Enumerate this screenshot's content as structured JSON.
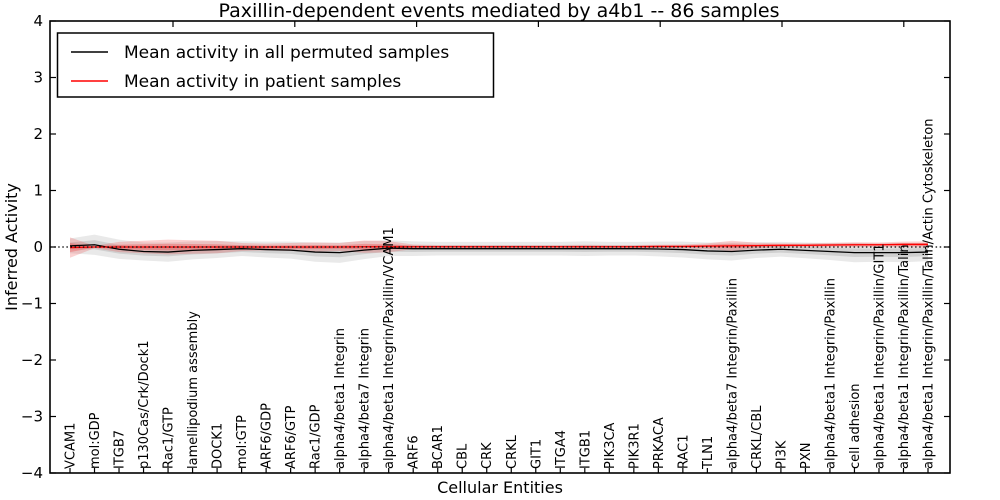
{
  "chart_data": {
    "type": "line",
    "title": "Paxillin-dependent events mediated by a4b1 -- 86 samples",
    "xlabel": "Cellular Entities",
    "ylabel": "Inferred Activity",
    "ylim": [
      -4,
      4
    ],
    "yticks": [
      4,
      3,
      2,
      1,
      0,
      -1,
      -2,
      -3,
      -4
    ],
    "grid": false,
    "legend_position": "upper-left",
    "zero_reference_line": true,
    "categories": [
      "VCAM1",
      "mol:GDP",
      "ITGB7",
      "p130Cas/Crk/Dock1",
      "Rac1/GTP",
      "lamellipodium assembly",
      "DOCK1",
      "mol:GTP",
      "ARF6/GDP",
      "ARF6/GTP",
      "Rac1/GDP",
      "alpha4/beta1 Integrin",
      "alpha4/beta7 Integrin",
      "alpha4/beta1 Integrin/Paxillin/VCAM1",
      "ARF6",
      "BCAR1",
      "CBL",
      "CRK",
      "CRKL",
      "GIT1",
      "ITGA4",
      "ITGB1",
      "PIK3CA",
      "PIK3R1",
      "PRKACA",
      "RAC1",
      "TLN1",
      "alpha4/beta7 Integrin/Paxillin",
      "CRKL/CBL",
      "PI3K",
      "PXN",
      "alpha4/beta1 Integrin/Paxillin",
      "cell adhesion",
      "alpha4/beta1 Integrin/Paxillin/GIT1",
      "alpha4/beta1 Integrin/Paxillin/Talin",
      "alpha4/beta1 Integrin/Paxillin/Talin/Actin Cytoskeleton"
    ],
    "series": [
      {
        "name": "Mean activity in all permuted samples",
        "color": "#000000",
        "band_color": "#999999",
        "values": [
          0.02,
          0.04,
          -0.04,
          -0.08,
          -0.09,
          -0.06,
          -0.045,
          -0.03,
          -0.045,
          -0.055,
          -0.09,
          -0.1,
          -0.055,
          -0.02,
          -0.03,
          -0.03,
          -0.03,
          -0.03,
          -0.03,
          -0.03,
          -0.03,
          -0.03,
          -0.03,
          -0.03,
          -0.035,
          -0.045,
          -0.07,
          -0.08,
          -0.055,
          -0.04,
          -0.06,
          -0.08,
          -0.1,
          -0.1,
          -0.1,
          -0.09
        ],
        "band_halfwidth": [
          0.13,
          0.18,
          0.17,
          0.16,
          0.17,
          0.16,
          0.15,
          0.13,
          0.14,
          0.15,
          0.17,
          0.18,
          0.16,
          0.14,
          0.13,
          0.12,
          0.12,
          0.12,
          0.12,
          0.12,
          0.12,
          0.13,
          0.12,
          0.12,
          0.13,
          0.14,
          0.15,
          0.16,
          0.14,
          0.13,
          0.14,
          0.15,
          0.17,
          0.16,
          0.17,
          0.16
        ]
      },
      {
        "name": "Mean activity in patient samples",
        "color": "#ff0000",
        "band_color": "#ee3333",
        "values": [
          -0.01,
          0.0,
          0.0,
          0.0,
          0.0,
          0.0,
          0.0,
          0.0,
          0.0,
          0.0,
          0.0,
          0.0,
          0.005,
          0.005,
          0.005,
          0.005,
          0.005,
          0.005,
          0.005,
          0.005,
          0.005,
          0.005,
          0.005,
          0.005,
          0.01,
          0.01,
          0.015,
          0.02,
          0.025,
          0.03,
          0.03,
          0.035,
          0.04,
          0.04,
          0.045,
          0.045
        ],
        "band_halfwidth": [
          0.18,
          0.02,
          0.09,
          0.11,
          0.13,
          0.12,
          0.11,
          0.07,
          0.06,
          0.07,
          0.08,
          0.07,
          0.11,
          0.1,
          0.04,
          0.03,
          0.03,
          0.03,
          0.03,
          0.03,
          0.03,
          0.035,
          0.03,
          0.03,
          0.03,
          0.035,
          0.05,
          0.09,
          0.05,
          0.035,
          0.035,
          0.04,
          0.045,
          0.04,
          0.05,
          0.055
        ]
      }
    ]
  }
}
